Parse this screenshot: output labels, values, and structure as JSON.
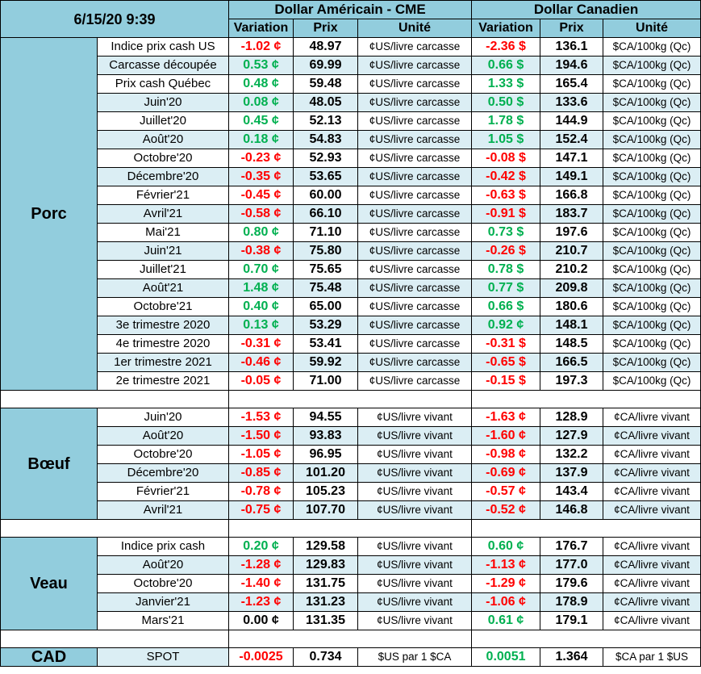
{
  "header": {
    "timestamp": "6/15/20 9:39",
    "usd_title": "Dollar Américain - CME",
    "cad_title": "Dollar Canadien",
    "col_variation": "Variation",
    "col_prix": "Prix",
    "col_unite": "Unité"
  },
  "colors": {
    "header_bg": "#92cddd",
    "row_alt_bg": "#dbeef4",
    "negative": "#ff0000",
    "positive": "#00b050"
  },
  "sections": {
    "porc": {
      "name": "Porc",
      "rows": [
        {
          "label": "Indice prix cash US",
          "usd_var": "-1.02 ¢",
          "usd_prix": "48.97",
          "usd_unit": "¢US/livre carcasse",
          "cad_var": "-2.36 $",
          "cad_prix": "136.1",
          "cad_unit": "$CA/100kg (Qc)"
        },
        {
          "label": "Carcasse découpée",
          "usd_var": "0.53 ¢",
          "usd_prix": "69.99",
          "usd_unit": "¢US/livre carcasse",
          "cad_var": "0.66 $",
          "cad_prix": "194.6",
          "cad_unit": "$CA/100kg (Qc)"
        },
        {
          "label": "Prix cash Québec",
          "usd_var": "0.48 ¢",
          "usd_prix": "59.48",
          "usd_unit": "¢US/livre carcasse",
          "cad_var": "1.33 $",
          "cad_prix": "165.4",
          "cad_unit": "$CA/100kg (Qc)"
        },
        {
          "label": "Juin'20",
          "usd_var": "0.08 ¢",
          "usd_prix": "48.05",
          "usd_unit": "¢US/livre carcasse",
          "cad_var": "0.50 $",
          "cad_prix": "133.6",
          "cad_unit": "$CA/100kg (Qc)"
        },
        {
          "label": "Juillet'20",
          "usd_var": "0.45 ¢",
          "usd_prix": "52.13",
          "usd_unit": "¢US/livre carcasse",
          "cad_var": "1.78 $",
          "cad_prix": "144.9",
          "cad_unit": "$CA/100kg (Qc)"
        },
        {
          "label": "Août'20",
          "usd_var": "0.18 ¢",
          "usd_prix": "54.83",
          "usd_unit": "¢US/livre carcasse",
          "cad_var": "1.05 $",
          "cad_prix": "152.4",
          "cad_unit": "$CA/100kg (Qc)"
        },
        {
          "label": "Octobre'20",
          "usd_var": "-0.23 ¢",
          "usd_prix": "52.93",
          "usd_unit": "¢US/livre carcasse",
          "cad_var": "-0.08 $",
          "cad_prix": "147.1",
          "cad_unit": "$CA/100kg (Qc)"
        },
        {
          "label": "Décembre'20",
          "usd_var": "-0.35 ¢",
          "usd_prix": "53.65",
          "usd_unit": "¢US/livre carcasse",
          "cad_var": "-0.42 $",
          "cad_prix": "149.1",
          "cad_unit": "$CA/100kg (Qc)"
        },
        {
          "label": "Février'21",
          "usd_var": "-0.45 ¢",
          "usd_prix": "60.00",
          "usd_unit": "¢US/livre carcasse",
          "cad_var": "-0.63 $",
          "cad_prix": "166.8",
          "cad_unit": "$CA/100kg (Qc)"
        },
        {
          "label": "Avril'21",
          "usd_var": "-0.58 ¢",
          "usd_prix": "66.10",
          "usd_unit": "¢US/livre carcasse",
          "cad_var": "-0.91 $",
          "cad_prix": "183.7",
          "cad_unit": "$CA/100kg (Qc)"
        },
        {
          "label": "Mai'21",
          "usd_var": "0.80 ¢",
          "usd_prix": "71.10",
          "usd_unit": "¢US/livre carcasse",
          "cad_var": "0.73 $",
          "cad_prix": "197.6",
          "cad_unit": "$CA/100kg (Qc)"
        },
        {
          "label": "Juin'21",
          "usd_var": "-0.38 ¢",
          "usd_prix": "75.80",
          "usd_unit": "¢US/livre carcasse",
          "cad_var": "-0.26 $",
          "cad_prix": "210.7",
          "cad_unit": "$CA/100kg (Qc)"
        },
        {
          "label": "Juillet'21",
          "usd_var": "0.70 ¢",
          "usd_prix": "75.65",
          "usd_unit": "¢US/livre carcasse",
          "cad_var": "0.78 $",
          "cad_prix": "210.2",
          "cad_unit": "$CA/100kg (Qc)"
        },
        {
          "label": "Août'21",
          "usd_var": "1.48 ¢",
          "usd_prix": "75.48",
          "usd_unit": "¢US/livre carcasse",
          "cad_var": "0.77 $",
          "cad_prix": "209.8",
          "cad_unit": "$CA/100kg (Qc)"
        },
        {
          "label": "Octobre'21",
          "usd_var": "0.40 ¢",
          "usd_prix": "65.00",
          "usd_unit": "¢US/livre carcasse",
          "cad_var": "0.66 $",
          "cad_prix": "180.6",
          "cad_unit": "$CA/100kg (Qc)"
        },
        {
          "label": "3e trimestre 2020",
          "usd_var": "0.13 ¢",
          "usd_prix": "53.29",
          "usd_unit": "¢US/livre carcasse",
          "cad_var": "0.92 ¢",
          "cad_prix": "148.1",
          "cad_unit": "$CA/100kg (Qc)"
        },
        {
          "label": "4e trimestre 2020",
          "usd_var": "-0.31 ¢",
          "usd_prix": "53.41",
          "usd_unit": "¢US/livre carcasse",
          "cad_var": "-0.31 $",
          "cad_prix": "148.5",
          "cad_unit": "$CA/100kg (Qc)"
        },
        {
          "label": "1er trimestre 2021",
          "usd_var": "-0.46 ¢",
          "usd_prix": "59.92",
          "usd_unit": "¢US/livre carcasse",
          "cad_var": "-0.65 $",
          "cad_prix": "166.5",
          "cad_unit": "$CA/100kg (Qc)"
        },
        {
          "label": "2e trimestre 2021",
          "usd_var": "-0.05 ¢",
          "usd_prix": "71.00",
          "usd_unit": "¢US/livre carcasse",
          "cad_var": "-0.15 $",
          "cad_prix": "197.3",
          "cad_unit": "$CA/100kg (Qc)"
        }
      ]
    },
    "boeuf": {
      "name": "Bœuf",
      "rows": [
        {
          "label": "Juin'20",
          "usd_var": "-1.53 ¢",
          "usd_prix": "94.55",
          "usd_unit": "¢US/livre vivant",
          "cad_var": "-1.63 ¢",
          "cad_prix": "128.9",
          "cad_unit": "¢CA/livre vivant"
        },
        {
          "label": "Août'20",
          "usd_var": "-1.50 ¢",
          "usd_prix": "93.83",
          "usd_unit": "¢US/livre vivant",
          "cad_var": "-1.60 ¢",
          "cad_prix": "127.9",
          "cad_unit": "¢CA/livre vivant"
        },
        {
          "label": "Octobre'20",
          "usd_var": "-1.05 ¢",
          "usd_prix": "96.95",
          "usd_unit": "¢US/livre vivant",
          "cad_var": "-0.98 ¢",
          "cad_prix": "132.2",
          "cad_unit": "¢CA/livre vivant"
        },
        {
          "label": "Décembre'20",
          "usd_var": "-0.85 ¢",
          "usd_prix": "101.20",
          "usd_unit": "¢US/livre vivant",
          "cad_var": "-0.69 ¢",
          "cad_prix": "137.9",
          "cad_unit": "¢CA/livre vivant"
        },
        {
          "label": "Février'21",
          "usd_var": "-0.78 ¢",
          "usd_prix": "105.23",
          "usd_unit": "¢US/livre vivant",
          "cad_var": "-0.57 ¢",
          "cad_prix": "143.4",
          "cad_unit": "¢CA/livre vivant"
        },
        {
          "label": "Avril'21",
          "usd_var": "-0.75 ¢",
          "usd_prix": "107.70",
          "usd_unit": "¢US/livre vivant",
          "cad_var": "-0.52 ¢",
          "cad_prix": "146.8",
          "cad_unit": "¢CA/livre vivant"
        }
      ]
    },
    "veau": {
      "name": "Veau",
      "rows": [
        {
          "label": "Indice prix cash",
          "usd_var": "0.20 ¢",
          "usd_prix": "129.58",
          "usd_unit": "¢US/livre vivant",
          "cad_var": "0.60 ¢",
          "cad_prix": "176.7",
          "cad_unit": "¢CA/livre vivant"
        },
        {
          "label": "Août'20",
          "usd_var": "-1.28 ¢",
          "usd_prix": "129.83",
          "usd_unit": "¢US/livre vivant",
          "cad_var": "-1.13 ¢",
          "cad_prix": "177.0",
          "cad_unit": "¢CA/livre vivant"
        },
        {
          "label": "Octobre'20",
          "usd_var": "-1.40 ¢",
          "usd_prix": "131.75",
          "usd_unit": "¢US/livre vivant",
          "cad_var": "-1.29 ¢",
          "cad_prix": "179.6",
          "cad_unit": "¢CA/livre vivant"
        },
        {
          "label": "Janvier'21",
          "usd_var": "-1.23 ¢",
          "usd_prix": "131.23",
          "usd_unit": "¢US/livre vivant",
          "cad_var": "-1.06 ¢",
          "cad_prix": "178.9",
          "cad_unit": "¢CA/livre vivant"
        },
        {
          "label": "Mars'21",
          "usd_var": "0.00 ¢",
          "usd_prix": "131.35",
          "usd_unit": "¢US/livre vivant",
          "cad_var": "0.61 ¢",
          "cad_prix": "179.1",
          "cad_unit": "¢CA/livre vivant"
        }
      ]
    },
    "cad": {
      "name": "CAD",
      "rows": [
        {
          "label": "SPOT",
          "usd_var": "-0.0025",
          "usd_prix": "0.734",
          "usd_unit": "$US par 1 $CA",
          "cad_var": "0.0051",
          "cad_prix": "1.364",
          "cad_unit": "$CA par 1 $US"
        }
      ]
    }
  }
}
